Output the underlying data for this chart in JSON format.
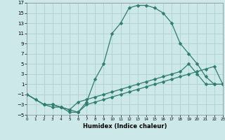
{
  "title": "",
  "xlabel": "Humidex (Indice chaleur)",
  "bg_color": "#cce8e8",
  "grid_color": "#aacccc",
  "line_color": "#2e7d6e",
  "xlim": [
    0,
    23
  ],
  "ylim": [
    -5,
    17
  ],
  "xticks": [
    0,
    1,
    2,
    3,
    4,
    5,
    6,
    7,
    8,
    9,
    10,
    11,
    12,
    13,
    14,
    15,
    16,
    17,
    18,
    19,
    20,
    21,
    22,
    23
  ],
  "yticks": [
    -5,
    -3,
    -1,
    1,
    3,
    5,
    7,
    9,
    11,
    13,
    15,
    17
  ],
  "line1_x": [
    0,
    1,
    2,
    3,
    4,
    5,
    6,
    7,
    8,
    9,
    10,
    11,
    12,
    13,
    14,
    15,
    16,
    17,
    18,
    19,
    20,
    21,
    22,
    23
  ],
  "line1_y": [
    -1,
    -2,
    -3,
    -3.5,
    -3.5,
    -4,
    -4.5,
    -2.5,
    2,
    5,
    11,
    13,
    16,
    16.5,
    16.5,
    16,
    15,
    13,
    9,
    7,
    5,
    2.5,
    1,
    1
  ],
  "line2_x": [
    0,
    2,
    3,
    4,
    5,
    6,
    7,
    8,
    9,
    10,
    11,
    12,
    13,
    14,
    15,
    16,
    17,
    18,
    19,
    20,
    21,
    22,
    23
  ],
  "line2_y": [
    -1,
    -3,
    -3,
    -3.5,
    -4,
    -2.5,
    -2,
    -1.5,
    -1,
    -0.5,
    0,
    0.5,
    1,
    1.5,
    2,
    2.5,
    3,
    3.5,
    5,
    3,
    1,
    1,
    1
  ],
  "line3_x": [
    0,
    2,
    3,
    4,
    5,
    6,
    7,
    8,
    9,
    10,
    11,
    12,
    13,
    14,
    15,
    16,
    17,
    18,
    19,
    20,
    21,
    22,
    23
  ],
  "line3_y": [
    -1,
    -3,
    -3,
    -3.5,
    -4.5,
    -4.5,
    -3,
    -2.5,
    -2,
    -1.5,
    -1,
    -0.5,
    0,
    0.5,
    1,
    1.5,
    2,
    2.5,
    3,
    3.5,
    4,
    4.5,
    1
  ]
}
